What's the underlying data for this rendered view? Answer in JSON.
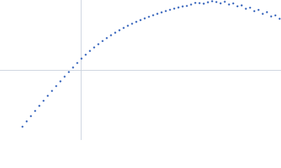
{
  "chart_data": {
    "type": "scatter",
    "color": "#3f6bbf",
    "x": [
      -83,
      -77,
      -71,
      -65,
      -59,
      -53,
      -47,
      -41,
      -35,
      -29,
      -23,
      -17,
      -11,
      -5,
      1,
      7,
      13,
      19,
      25,
      31,
      37,
      43,
      49,
      55,
      61,
      67,
      73,
      79,
      85,
      91,
      97,
      103,
      109,
      115,
      121,
      127,
      133,
      139,
      145,
      151,
      157,
      163,
      169,
      175,
      181,
      187,
      193,
      199,
      205,
      211,
      217,
      223,
      229,
      235,
      241,
      247,
      253,
      259,
      265,
      271,
      277,
      283
    ],
    "values": [
      -81,
      -73.4,
      -65.9,
      -58.5,
      -51.2,
      -44,
      -36.9,
      -29.9,
      -23,
      -16.2,
      -9.5,
      -2.9,
      3.6,
      10,
      16.3,
      21.9,
      27.2,
      32.2,
      36.9,
      41.4,
      45.6,
      49.6,
      53.3,
      56.8,
      60.1,
      63.2,
      66.1,
      68.8,
      71.3,
      73.7,
      76,
      78.2,
      80.3,
      82.3,
      84.2,
      86,
      87.7,
      89.3,
      90.8,
      91.5,
      93.5,
      95.9,
      95.5,
      94.8,
      96.7,
      98.2,
      97.1,
      95.2,
      97.5,
      93.6,
      95.1,
      91,
      92.3,
      87.5,
      89,
      84.1,
      85.9,
      80.2,
      82.6,
      76.5,
      78,
      73.2
    ],
    "xlim": [
      -115,
      285
    ],
    "ylim": [
      -100,
      100
    ]
  }
}
